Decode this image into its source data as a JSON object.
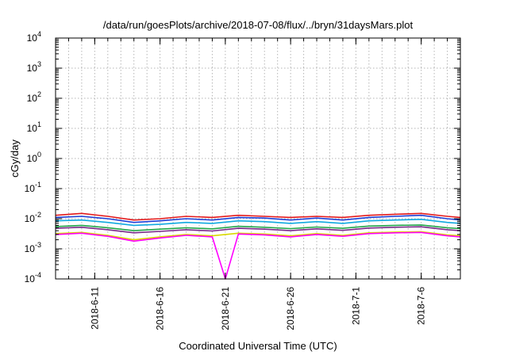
{
  "chart_data": {
    "type": "line",
    "title": "/data/run/goesPlots/archive/2018-07-08/flux/../bryn/31daysMars.plot",
    "xlabel": "Coordinated Universal Time (UTC)",
    "ylabel": "cGy/day",
    "yscale": "log",
    "ylim": [
      0.0001,
      10000
    ],
    "xlim": [
      "2018-06-08",
      "2018-07-09"
    ],
    "grid": true,
    "yticks": [
      {
        "base": "10",
        "exp": "-4"
      },
      {
        "base": "10",
        "exp": "-3"
      },
      {
        "base": "10",
        "exp": "-2"
      },
      {
        "base": "10",
        "exp": "-1"
      },
      {
        "base": "10",
        "exp": "0"
      },
      {
        "base": "10",
        "exp": "1"
      },
      {
        "base": "10",
        "exp": "2"
      },
      {
        "base": "10",
        "exp": "3"
      },
      {
        "base": "10",
        "exp": "4"
      }
    ],
    "xticks": [
      {
        "label": "2018-6-11",
        "date": "2018-06-11"
      },
      {
        "label": "2018-6-16",
        "date": "2018-06-16"
      },
      {
        "label": "2018-6-21",
        "date": "2018-06-21"
      },
      {
        "label": "2018-6-26",
        "date": "2018-06-26"
      },
      {
        "label": "2018-7-1",
        "date": "2018-07-01"
      },
      {
        "label": "2018-7-6",
        "date": "2018-07-06"
      }
    ],
    "series": [
      {
        "color": "#e41a1c",
        "x": [
          "2018-06-08",
          "2018-06-10",
          "2018-06-12",
          "2018-06-14",
          "2018-06-16",
          "2018-06-18",
          "2018-06-20",
          "2018-06-22",
          "2018-06-24",
          "2018-06-26",
          "2018-06-28",
          "2018-06-30",
          "2018-07-02",
          "2018-07-04",
          "2018-07-06",
          "2018-07-08",
          "2018-07-09"
        ],
        "y": [
          0.013,
          0.015,
          0.012,
          0.009,
          0.01,
          0.012,
          0.011,
          0.013,
          0.012,
          0.011,
          0.012,
          0.011,
          0.013,
          0.014,
          0.015,
          0.012,
          0.011
        ]
      },
      {
        "color": "#1f3fd6",
        "x": [
          "2018-06-08",
          "2018-06-10",
          "2018-06-12",
          "2018-06-14",
          "2018-06-16",
          "2018-06-18",
          "2018-06-20",
          "2018-06-22",
          "2018-06-24",
          "2018-06-26",
          "2018-06-28",
          "2018-06-30",
          "2018-07-02",
          "2018-07-04",
          "2018-07-06",
          "2018-07-08",
          "2018-07-09"
        ],
        "y": [
          0.011,
          0.012,
          0.01,
          0.0075,
          0.0085,
          0.01,
          0.009,
          0.011,
          0.0105,
          0.009,
          0.0105,
          0.009,
          0.011,
          0.012,
          0.013,
          0.01,
          0.009
        ]
      },
      {
        "color": "#10a9e0",
        "x": [
          "2018-06-08",
          "2018-06-10",
          "2018-06-12",
          "2018-06-14",
          "2018-06-16",
          "2018-06-18",
          "2018-06-20",
          "2018-06-22",
          "2018-06-24",
          "2018-06-26",
          "2018-06-28",
          "2018-06-30",
          "2018-07-02",
          "2018-07-04",
          "2018-07-06",
          "2018-07-08",
          "2018-07-09"
        ],
        "y": [
          0.0085,
          0.009,
          0.0075,
          0.006,
          0.0065,
          0.0075,
          0.007,
          0.0085,
          0.008,
          0.007,
          0.008,
          0.007,
          0.0085,
          0.009,
          0.0095,
          0.0075,
          0.007
        ]
      },
      {
        "color": "#22a64a",
        "x": [
          "2018-06-08",
          "2018-06-10",
          "2018-06-12",
          "2018-06-14",
          "2018-06-16",
          "2018-06-18",
          "2018-06-20",
          "2018-06-22",
          "2018-06-24",
          "2018-06-26",
          "2018-06-28",
          "2018-06-30",
          "2018-07-02",
          "2018-07-04",
          "2018-07-06",
          "2018-07-08",
          "2018-07-09"
        ],
        "y": [
          0.0055,
          0.006,
          0.005,
          0.004,
          0.0045,
          0.005,
          0.0046,
          0.0056,
          0.0052,
          0.0047,
          0.0053,
          0.0048,
          0.0057,
          0.006,
          0.0062,
          0.005,
          0.0047
        ]
      },
      {
        "color": "#7a2a8a",
        "x": [
          "2018-06-08",
          "2018-06-10",
          "2018-06-12",
          "2018-06-14",
          "2018-06-16",
          "2018-06-18",
          "2018-06-20",
          "2018-06-22",
          "2018-06-24",
          "2018-06-26",
          "2018-06-28",
          "2018-06-30",
          "2018-07-02",
          "2018-07-04",
          "2018-07-06",
          "2018-07-08",
          "2018-07-09"
        ],
        "y": [
          0.0048,
          0.0052,
          0.0043,
          0.0034,
          0.0038,
          0.0043,
          0.0039,
          0.0048,
          0.0045,
          0.004,
          0.0046,
          0.0041,
          0.0049,
          0.0052,
          0.0054,
          0.0043,
          0.004
        ]
      },
      {
        "color": "#d9d900",
        "x": [
          "2018-06-08",
          "2018-06-10",
          "2018-06-12",
          "2018-06-14",
          "2018-06-16",
          "2018-06-18",
          "2018-06-20",
          "2018-06-22",
          "2018-06-24",
          "2018-06-26",
          "2018-06-28",
          "2018-06-30",
          "2018-07-02",
          "2018-07-04",
          "2018-07-06",
          "2018-07-08",
          "2018-07-09"
        ],
        "y": [
          0.0032,
          0.0035,
          0.0028,
          0.002,
          0.0025,
          0.003,
          0.0027,
          0.0033,
          0.0031,
          0.0027,
          0.0032,
          0.0028,
          0.0034,
          0.0036,
          0.0037,
          0.0029,
          0.0027
        ]
      },
      {
        "color": "#ff00ff",
        "x": [
          "2018-06-08",
          "2018-06-10",
          "2018-06-12",
          "2018-06-14",
          "2018-06-16",
          "2018-06-18",
          "2018-06-20",
          "2018-06-21",
          "2018-06-22",
          "2018-06-24",
          "2018-06-26",
          "2018-06-28",
          "2018-06-30",
          "2018-07-02",
          "2018-07-04",
          "2018-07-06",
          "2018-07-08",
          "2018-07-09"
        ],
        "y": [
          0.003,
          0.0033,
          0.0026,
          0.0018,
          0.0023,
          0.0028,
          0.0025,
          0.0001,
          0.0031,
          0.0029,
          0.0025,
          0.003,
          0.0026,
          0.0032,
          0.0034,
          0.0035,
          0.0027,
          0.0025
        ]
      }
    ]
  }
}
